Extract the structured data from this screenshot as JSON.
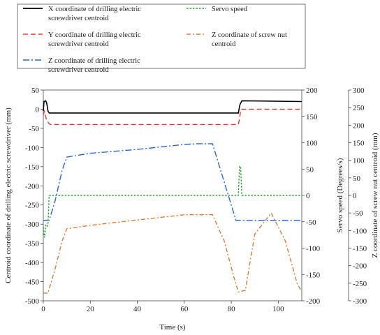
{
  "chart_data": {
    "type": "line",
    "xlabel": "Time (s)",
    "xlim": [
      0,
      110
    ],
    "xticks": [
      0,
      20,
      40,
      60,
      80,
      100
    ],
    "axes": {
      "left": {
        "label": "Centroid coordinate of drilling electric screwdriver (mm)",
        "lim": [
          -500,
          50
        ],
        "ticks": [
          50,
          0,
          -50,
          -100,
          -150,
          -200,
          -250,
          -300,
          -350,
          -400,
          -450,
          -500
        ]
      },
      "right1": {
        "label": "Servo speed (Degrees/s)",
        "lim": [
          -200,
          200
        ],
        "ticks": [
          200,
          150,
          100,
          50,
          0,
          -50,
          -100,
          -150,
          -200
        ]
      },
      "right2": {
        "label": "Z coordinate of screw nut centroid (mm)",
        "lim": [
          -300,
          300
        ],
        "ticks": [
          300,
          250,
          200,
          150,
          100,
          50,
          0,
          -50,
          -100,
          -150,
          -200,
          -250,
          -300
        ]
      }
    },
    "legend_position": "top",
    "grid": false,
    "series": [
      {
        "name": "X coordinate of drilling electric screwdriver centroid",
        "axis": "left",
        "color": "#000000",
        "dash": "solid",
        "points": [
          [
            0,
            -5
          ],
          [
            0.3,
            20
          ],
          [
            1,
            22
          ],
          [
            1.5,
            15
          ],
          [
            2,
            -5
          ],
          [
            2.5,
            -10
          ],
          [
            10,
            -10
          ],
          [
            83,
            -10
          ],
          [
            83.7,
            12
          ],
          [
            84.5,
            22
          ],
          [
            110,
            20
          ]
        ]
      },
      {
        "name": "Y coordinate of drilling electric screwdriver centroid",
        "axis": "left",
        "color": "#e33b3b",
        "dash": "dashed",
        "points": [
          [
            0,
            -15
          ],
          [
            0.5,
            -5
          ],
          [
            1.3,
            -28
          ],
          [
            2.5,
            -38
          ],
          [
            3,
            -40
          ],
          [
            83,
            -40
          ],
          [
            83.6,
            -22
          ],
          [
            84,
            -2
          ],
          [
            84.5,
            0
          ],
          [
            110,
            0
          ]
        ]
      },
      {
        "name": "Z coordinate of drilling electric screwdriver centroid",
        "axis": "left",
        "color": "#2a64d8",
        "dash": "dashdot",
        "points": [
          [
            0,
            -290
          ],
          [
            2.5,
            -290
          ],
          [
            5,
            -240
          ],
          [
            8,
            -160
          ],
          [
            10,
            -125
          ],
          [
            20,
            -115
          ],
          [
            40,
            -105
          ],
          [
            60,
            -92
          ],
          [
            66,
            -90
          ],
          [
            72,
            -90
          ],
          [
            82,
            -290
          ],
          [
            110,
            -290
          ]
        ]
      },
      {
        "name": "Servo speed",
        "axis": "right1",
        "color": "#2f9f3a",
        "dash": "dotted",
        "points": [
          [
            0,
            -60
          ],
          [
            0.5,
            -80
          ],
          [
            1,
            -57
          ],
          [
            1.5,
            -60
          ],
          [
            2,
            -55
          ],
          [
            2.5,
            0
          ],
          [
            83,
            0
          ],
          [
            83.5,
            55
          ],
          [
            84,
            55
          ],
          [
            84.5,
            0
          ],
          [
            110,
            0
          ]
        ]
      },
      {
        "name": "Z coordinate of screw nut centroid",
        "axis": "right2",
        "color": "#e07a35",
        "dash": "dashdot2",
        "points": [
          [
            0,
            -278
          ],
          [
            2,
            -278
          ],
          [
            5,
            -210
          ],
          [
            8,
            -130
          ],
          [
            10,
            -95
          ],
          [
            20,
            -85
          ],
          [
            40,
            -70
          ],
          [
            60,
            -55
          ],
          [
            72,
            -55
          ],
          [
            77,
            -130
          ],
          [
            81,
            -230
          ],
          [
            83,
            -275
          ],
          [
            86,
            -270
          ],
          [
            90,
            -110
          ],
          [
            97,
            -50
          ],
          [
            103,
            -130
          ],
          [
            108,
            -250
          ],
          [
            110,
            -275
          ]
        ]
      }
    ]
  }
}
